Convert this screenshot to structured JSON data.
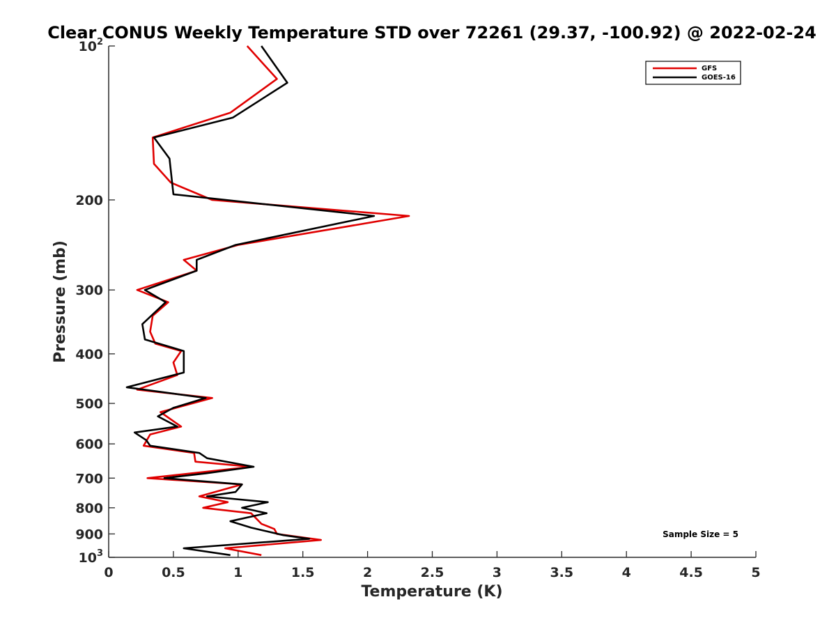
{
  "chart_data": {
    "type": "line",
    "title": "Clear CONUS Weekly Temperature STD over 72261 (29.37, -100.92) @ 2022-02-24",
    "xlabel": "Temperature (K)",
    "ylabel": "Pressure (mb)",
    "xlim": [
      0,
      5
    ],
    "ylim": [
      100,
      1000
    ],
    "yscale": "log",
    "y_reversed": true,
    "x_ticks": [
      "0",
      "0.5",
      "1",
      "1.5",
      "2",
      "2.5",
      "3",
      "3.5",
      "4",
      "4.5",
      "5"
    ],
    "y_ticks": [
      {
        "value": 100,
        "base": "10",
        "exp": "2"
      },
      {
        "value": 200,
        "label": "200"
      },
      {
        "value": 300,
        "label": "300"
      },
      {
        "value": 400,
        "label": "400"
      },
      {
        "value": 500,
        "label": "500"
      },
      {
        "value": 600,
        "label": "600"
      },
      {
        "value": 700,
        "label": "700"
      },
      {
        "value": 800,
        "label": "800"
      },
      {
        "value": 900,
        "label": "900"
      },
      {
        "value": 1000,
        "base": "10",
        "exp": "3"
      }
    ],
    "grid": false,
    "legend_position": "top-right",
    "annotation": "Sample Size = 5",
    "series": [
      {
        "name": "GFS",
        "color": "#e00000",
        "points": [
          [
            1.07,
            100
          ],
          [
            1.3,
            116
          ],
          [
            0.94,
            135
          ],
          [
            0.34,
            151
          ],
          [
            0.35,
            170
          ],
          [
            0.48,
            185
          ],
          [
            0.8,
            200
          ],
          [
            2.32,
            215
          ],
          [
            1.0,
            245
          ],
          [
            0.58,
            262
          ],
          [
            0.68,
            275
          ],
          [
            0.22,
            300
          ],
          [
            0.46,
            317
          ],
          [
            0.34,
            337
          ],
          [
            0.32,
            362
          ],
          [
            0.36,
            382
          ],
          [
            0.56,
            395
          ],
          [
            0.5,
            416
          ],
          [
            0.53,
            440
          ],
          [
            0.22,
            470
          ],
          [
            0.8,
            488
          ],
          [
            0.4,
            520
          ],
          [
            0.56,
            555
          ],
          [
            0.32,
            575
          ],
          [
            0.27,
            605
          ],
          [
            0.66,
            625
          ],
          [
            0.67,
            650
          ],
          [
            1.1,
            665
          ],
          [
            0.3,
            700
          ],
          [
            1.03,
            720
          ],
          [
            0.7,
            760
          ],
          [
            0.92,
            780
          ],
          [
            0.73,
            800
          ],
          [
            1.1,
            820
          ],
          [
            1.18,
            860
          ],
          [
            1.28,
            880
          ],
          [
            1.3,
            900
          ],
          [
            1.64,
            925
          ],
          [
            0.9,
            960
          ],
          [
            1.18,
            990
          ]
        ]
      },
      {
        "name": "GOES-16",
        "color": "#000000",
        "points": [
          [
            1.18,
            100
          ],
          [
            1.38,
            118
          ],
          [
            0.96,
            138
          ],
          [
            0.35,
            151
          ],
          [
            0.47,
            166
          ],
          [
            0.5,
            195
          ],
          [
            2.05,
            215
          ],
          [
            0.98,
            245
          ],
          [
            0.68,
            262
          ],
          [
            0.68,
            275
          ],
          [
            0.28,
            300
          ],
          [
            0.44,
            317
          ],
          [
            0.26,
            350
          ],
          [
            0.28,
            375
          ],
          [
            0.58,
            395
          ],
          [
            0.58,
            435
          ],
          [
            0.14,
            465
          ],
          [
            0.75,
            488
          ],
          [
            0.5,
            510
          ],
          [
            0.38,
            530
          ],
          [
            0.53,
            555
          ],
          [
            0.2,
            570
          ],
          [
            0.29,
            590
          ],
          [
            0.32,
            605
          ],
          [
            0.7,
            625
          ],
          [
            0.76,
            640
          ],
          [
            1.12,
            665
          ],
          [
            0.75,
            685
          ],
          [
            0.43,
            700
          ],
          [
            1.03,
            720
          ],
          [
            0.98,
            745
          ],
          [
            0.76,
            760
          ],
          [
            1.23,
            780
          ],
          [
            1.03,
            800
          ],
          [
            1.22,
            820
          ],
          [
            0.94,
            850
          ],
          [
            1.1,
            875
          ],
          [
            1.35,
            905
          ],
          [
            1.55,
            920
          ],
          [
            0.58,
            960
          ],
          [
            0.94,
            990
          ]
        ]
      }
    ]
  }
}
